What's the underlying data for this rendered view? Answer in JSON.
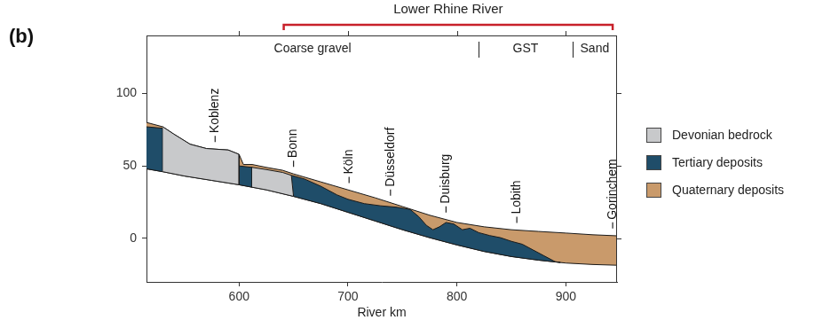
{
  "chart_data": {
    "type": "area",
    "panel_label": "(b)",
    "x_label": "River km",
    "xlim": [
      515,
      947
    ],
    "xticks": [
      600,
      700,
      800,
      900
    ],
    "ylim": [
      -30,
      140
    ],
    "yticks": [
      0,
      50,
      100
    ],
    "grid": false,
    "legend": "right",
    "series": [
      {
        "name": "Devonian bedrock",
        "color": "#c8c9cb",
        "polygons": [
          {
            "x": [
              530,
              540,
              555,
              570,
              590,
              600,
              600,
              575,
              550,
              530
            ],
            "y": [
              77,
              72,
              65,
              62,
              61,
              58,
              37,
              40,
              43,
              46
            ]
          },
          {
            "x": [
              612,
              625,
              640,
              648,
              650,
              625,
              612
            ],
            "y": [
              49,
              47.5,
              45.5,
              43.5,
              29,
              33.5,
              35.3
            ]
          }
        ]
      },
      {
        "name": "Tertiary deposits",
        "color": "#1f4d69",
        "polygons": [
          {
            "x": [
              515,
              530,
              530,
              515
            ],
            "y": [
              77,
              76,
              46,
              48
            ]
          },
          {
            "x": [
              600,
              612,
              612,
              600
            ],
            "y": [
              50,
              49,
              35.3,
              37
            ]
          },
          {
            "x": [
              648,
              660,
              675,
              690,
              700,
              715,
              730,
              745,
              757,
              765,
              772,
              778,
              784,
              790,
              797,
              805,
              812,
              820,
              830,
              840,
              850,
              860,
              870,
              880,
              890,
              895,
              875,
              850,
              825,
              800,
              775,
              750,
              725,
              700,
              675,
              650
            ],
            "y": [
              43.5,
              41,
              36,
              30,
              27,
              24,
              22.5,
              21.5,
              20,
              15,
              9,
              6,
              8,
              11,
              10,
              6,
              7,
              4,
              2,
              0.5,
              -2,
              -4,
              -8,
              -12,
              -16,
              -16.6,
              -15,
              -12.5,
              -9,
              -4.5,
              0.5,
              6,
              12,
              18,
              24,
              29
            ]
          }
        ]
      },
      {
        "name": "Quaternary deposits",
        "color": "#c99a6b",
        "polygons": [
          {
            "x": [
              515,
              530,
              540,
              555,
              570,
              590,
              600,
              604,
              612,
              625,
              640,
              650,
              675,
              700,
              725,
              750,
              775,
              800,
              825,
              850,
              875,
              900,
              925,
              947,
              947,
              925,
              900,
              875,
              850,
              825,
              800,
              775,
              750,
              725,
              700,
              675,
              650,
              625,
              600,
              575,
              550,
              530,
              515
            ],
            "y": [
              80,
              77,
              72,
              65,
              62,
              61,
              58,
              51,
              51,
              49,
              47,
              44.5,
              39,
              33.5,
              28,
              22,
              16,
              11,
              8,
              6,
              4.8,
              3.7,
              2.5,
              1.8,
              -18.5,
              -18,
              -17,
              -15,
              -12.5,
              -9,
              -4.5,
              0.5,
              6,
              12,
              18,
              24,
              29,
              33.5,
              37,
              40,
              43,
              46,
              48
            ]
          }
        ]
      }
    ],
    "places": [
      {
        "name": "Koblenz",
        "x": 578
      },
      {
        "name": "Bonn",
        "x": 650
      },
      {
        "name": "Köln",
        "x": 701
      },
      {
        "name": "Düsseldorf",
        "x": 739
      },
      {
        "name": "Duisburg",
        "x": 790
      },
      {
        "name": "Lobith",
        "x": 855
      },
      {
        "name": "Gorinchem",
        "x": 943
      }
    ],
    "river_section": {
      "label": "Lower Rhine River",
      "x": [
        641,
        943
      ]
    },
    "zones": [
      {
        "label": "Coarse gravel",
        "x": [
          515,
          820
        ]
      },
      {
        "label": "GST",
        "x": [
          820,
          906
        ]
      },
      {
        "label": "Sand",
        "x": [
          906,
          947
        ]
      }
    ]
  }
}
